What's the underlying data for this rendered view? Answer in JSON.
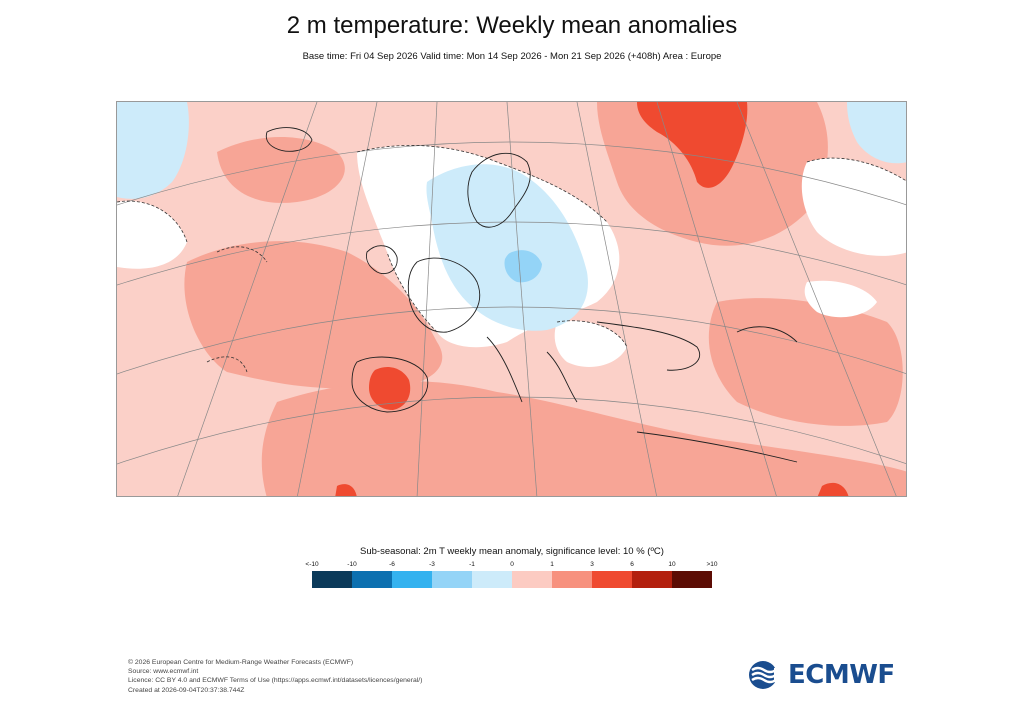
{
  "title": "2 m temperature: Weekly mean anomalies",
  "subtitle": "Base time: Fri 04 Sep 2026 Valid time: Mon 14 Sep 2026 - Mon 21 Sep 2026 (+408h) Area : Europe",
  "legend": {
    "title": "Sub-seasonal: 2m T weekly mean anomaly, significance level: 10 % (ºC)",
    "ticks": [
      "<-10",
      "-10",
      "-6",
      "-3",
      "-1",
      "0",
      "1",
      "3",
      "6",
      "10",
      ">10"
    ],
    "colors": [
      "#0b3a5a",
      "#0c70b0",
      "#34b2ef",
      "#94d4f7",
      "#cdebfa",
      "#ffffff",
      "#fccbc2",
      "#f7917e",
      "#ef4a30",
      "#b3200e",
      "#5c0c04"
    ]
  },
  "map_colors": {
    "land_base": "#fbd0c8",
    "warm": "#f7a596",
    "hot": "#ef4a30",
    "neutral": "#ffffff",
    "cool": "#cdebfa",
    "cooler": "#94d4f7"
  },
  "footer": {
    "line1": "© 2026 European Centre for Medium-Range Weather Forecasts (ECMWF)",
    "line2": "Source: www.ecmwf.int",
    "line3": "Licence: CC BY 4.0 and ECMWF Terms of Use (https://apps.ecmwf.int/datasets/licences/general/)",
    "line4": "Created at 2026-09-04T20:37:38.744Z"
  },
  "logo": {
    "text": "ECMWF",
    "color": "#1a4d8f"
  }
}
